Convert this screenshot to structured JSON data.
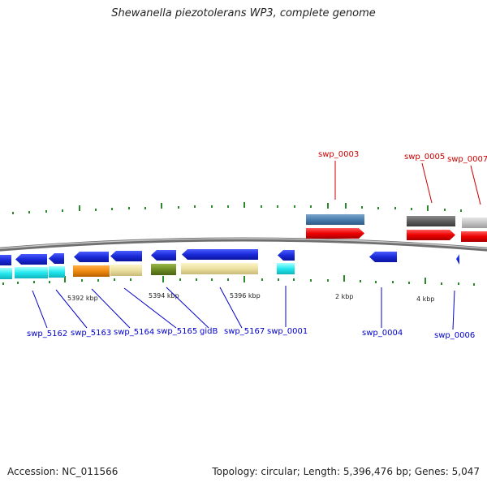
{
  "title": "Shewanella piezotolerans WP3, complete genome",
  "footer": {
    "accession": "Accession: NC_011566",
    "summary": "Topology: circular; Length: 5,396,476 bp; Genes: 5,047"
  },
  "colors": {
    "backbone": "#808080",
    "tick": "#2a8a2a",
    "top_label": "#cc0000",
    "bottom_label": "#0000cc"
  },
  "scale_labels": [
    "5392 kbp",
    "5394 kbp",
    "5396 kbp",
    "2 kbp",
    "4 kbp"
  ],
  "top_genes": [
    {
      "label": "swp_0003",
      "color": "#cc0000"
    },
    {
      "label": "swp_0005",
      "color": "#cc0000"
    },
    {
      "label": "swp_0007",
      "color": "#cc0000"
    }
  ],
  "bottom_genes": [
    {
      "label": "swp_5162",
      "color": "#0000cc"
    },
    {
      "label": "swp_5163",
      "color": "#0000cc"
    },
    {
      "label": "swp_5164",
      "color": "#0000cc"
    },
    {
      "label": "swp_5165",
      "color": "#0000cc"
    },
    {
      "label": "gidB",
      "color": "#0000cc"
    },
    {
      "label": "swp_5167",
      "color": "#0000cc"
    },
    {
      "label": "swp_0001",
      "color": "#0000cc"
    },
    {
      "label": "swp_0004",
      "color": "#0000cc"
    },
    {
      "label": "swp_0006",
      "color": "#0000cc"
    }
  ]
}
